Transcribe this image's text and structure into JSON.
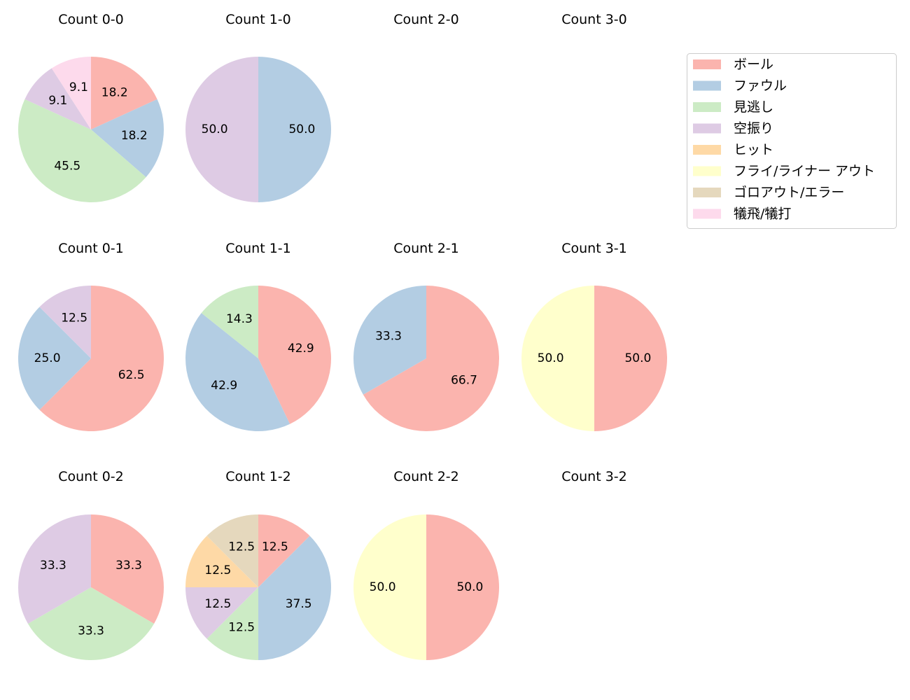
{
  "chart_data": {
    "type": "pie",
    "legend_position": "top-right",
    "legend": [
      {
        "label": "ボール",
        "color": "#fbb4ae"
      },
      {
        "label": "ファウル",
        "color": "#b3cde3"
      },
      {
        "label": "見逃し",
        "color": "#ccebc5"
      },
      {
        "label": "空振り",
        "color": "#decbe4"
      },
      {
        "label": "ヒット",
        "color": "#fed9a6"
      },
      {
        "label": "フライ/ライナー アウト",
        "color": "#ffffcc"
      },
      {
        "label": "ゴロアウト/エラー",
        "color": "#e5d8bd"
      },
      {
        "label": "犠飛/犠打",
        "color": "#fddaec"
      }
    ],
    "panels": [
      {
        "title": "Count 0-0",
        "slices": [
          {
            "category": "ボール",
            "value": 18.2,
            "label": "18.2"
          },
          {
            "category": "ファウル",
            "value": 18.2,
            "label": "18.2"
          },
          {
            "category": "見逃し",
            "value": 45.5,
            "label": "45.5"
          },
          {
            "category": "空振り",
            "value": 9.1,
            "label": "9.1"
          },
          {
            "category": "犠飛/犠打",
            "value": 9.1,
            "label": "9.1"
          }
        ]
      },
      {
        "title": "Count 1-0",
        "slices": [
          {
            "category": "ファウル",
            "value": 50.0,
            "label": "50.0"
          },
          {
            "category": "空振り",
            "value": 50.0,
            "label": "50.0"
          }
        ]
      },
      {
        "title": "Count 2-0",
        "slices": []
      },
      {
        "title": "Count 3-0",
        "slices": []
      },
      {
        "title": "Count 0-1",
        "slices": [
          {
            "category": "ボール",
            "value": 62.5,
            "label": "62.5"
          },
          {
            "category": "ファウル",
            "value": 25.0,
            "label": "25.0"
          },
          {
            "category": "空振り",
            "value": 12.5,
            "label": "12.5"
          }
        ]
      },
      {
        "title": "Count 1-1",
        "slices": [
          {
            "category": "ボール",
            "value": 42.9,
            "label": "42.9"
          },
          {
            "category": "ファウル",
            "value": 42.9,
            "label": "42.9"
          },
          {
            "category": "見逃し",
            "value": 14.3,
            "label": "14.3"
          }
        ]
      },
      {
        "title": "Count 2-1",
        "slices": [
          {
            "category": "ボール",
            "value": 66.7,
            "label": "66.7"
          },
          {
            "category": "ファウル",
            "value": 33.3,
            "label": "33.3"
          }
        ]
      },
      {
        "title": "Count 3-1",
        "slices": [
          {
            "category": "ボール",
            "value": 50.0,
            "label": "50.0"
          },
          {
            "category": "フライ/ライナー アウト",
            "value": 50.0,
            "label": "50.0"
          }
        ]
      },
      {
        "title": "Count 0-2",
        "slices": [
          {
            "category": "ボール",
            "value": 33.3,
            "label": "33.3"
          },
          {
            "category": "見逃し",
            "value": 33.3,
            "label": "33.3"
          },
          {
            "category": "空振り",
            "value": 33.3,
            "label": "33.3"
          }
        ]
      },
      {
        "title": "Count 1-2",
        "slices": [
          {
            "category": "ボール",
            "value": 12.5,
            "label": "12.5"
          },
          {
            "category": "ファウル",
            "value": 37.5,
            "label": "37.5"
          },
          {
            "category": "見逃し",
            "value": 12.5,
            "label": "12.5"
          },
          {
            "category": "空振り",
            "value": 12.5,
            "label": "12.5"
          },
          {
            "category": "ヒット",
            "value": 12.5,
            "label": "12.5"
          },
          {
            "category": "ゴロアウト/エラー",
            "value": 12.5,
            "label": "12.5"
          }
        ]
      },
      {
        "title": "Count 2-2",
        "slices": [
          {
            "category": "ボール",
            "value": 50.0,
            "label": "50.0"
          },
          {
            "category": "フライ/ライナー アウト",
            "value": 50.0,
            "label": "50.0"
          }
        ]
      },
      {
        "title": "Count 3-2",
        "slices": []
      }
    ]
  }
}
